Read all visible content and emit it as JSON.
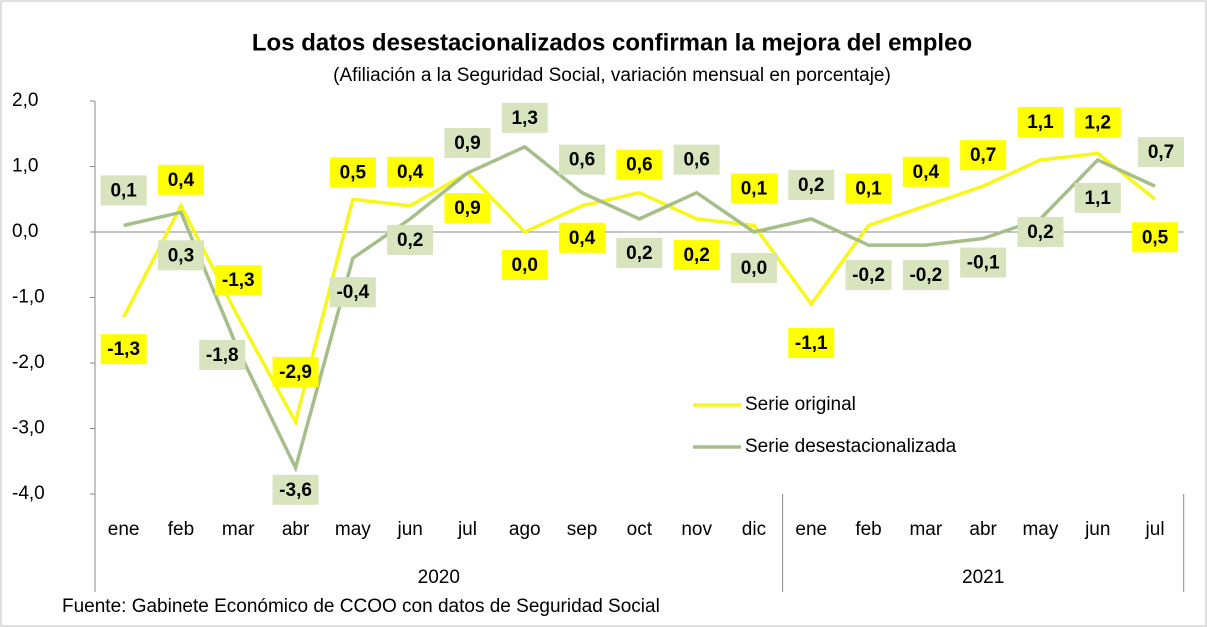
{
  "chart_data": {
    "type": "line",
    "title": "Los datos desestacionalizados confirman la mejora del empleo",
    "subtitle": "(Afiliación a la Seguridad Social, variación mensual en porcentaje)",
    "categories": [
      "ene",
      "feb",
      "mar",
      "abr",
      "may",
      "jun",
      "jul",
      "ago",
      "sep",
      "oct",
      "nov",
      "dic",
      "ene",
      "feb",
      "mar",
      "abr",
      "may",
      "jun",
      "jul"
    ],
    "year_labels": [
      "2020",
      "2021"
    ],
    "series": [
      {
        "name": "Serie original",
        "color": "#f7f71c",
        "values": [
          -1.3,
          0.4,
          -1.3,
          -2.9,
          0.5,
          0.4,
          0.9,
          0.0,
          0.4,
          0.6,
          0.2,
          0.1,
          -1.1,
          0.1,
          0.4,
          0.7,
          1.1,
          1.2,
          0.5
        ],
        "value_labels": [
          "-1,3",
          "0,4",
          "-1,3",
          "-2,9",
          "0,5",
          "0,4",
          "0,9",
          "0,0",
          "0,4",
          "0,6",
          "0,2",
          "0,1",
          "-1,1",
          "0,1",
          "0,4",
          "0,7",
          "1,1",
          "1,2",
          "0,5"
        ]
      },
      {
        "name": "Serie desestacionalizada",
        "color": "#a6bf8a",
        "values": [
          0.1,
          0.3,
          -1.8,
          -3.6,
          -0.4,
          0.2,
          0.9,
          1.3,
          0.6,
          0.2,
          0.6,
          0.0,
          0.2,
          -0.2,
          -0.2,
          -0.1,
          0.2,
          1.1,
          0.7
        ],
        "value_labels": [
          "0,1",
          "0,3",
          "-1,8",
          "-3,6",
          "-0,4",
          "0,2",
          "0,9",
          "1,3",
          "0,6",
          "0,2",
          "0,6",
          "0,0",
          "0,2",
          "-0,2",
          "-0,2",
          "-0,1",
          "0,2",
          "1,1",
          "0,7"
        ]
      }
    ],
    "ylim": [
      -4,
      2
    ],
    "yticks": [
      {
        "value": -4,
        "label": "-4,0"
      },
      {
        "value": -3,
        "label": "-3,0"
      },
      {
        "value": -2,
        "label": "-2,0"
      },
      {
        "value": -1,
        "label": "-1,0"
      },
      {
        "value": 0,
        "label": "0,0"
      },
      {
        "value": 1,
        "label": "1,0"
      },
      {
        "value": 2,
        "label": "2,0"
      }
    ],
    "label_fills": [
      "#ffff00",
      "#d7e4bd"
    ],
    "footnote": "Fuente: Gabinete Económico de CCOO con datos de Seguridad Social"
  }
}
